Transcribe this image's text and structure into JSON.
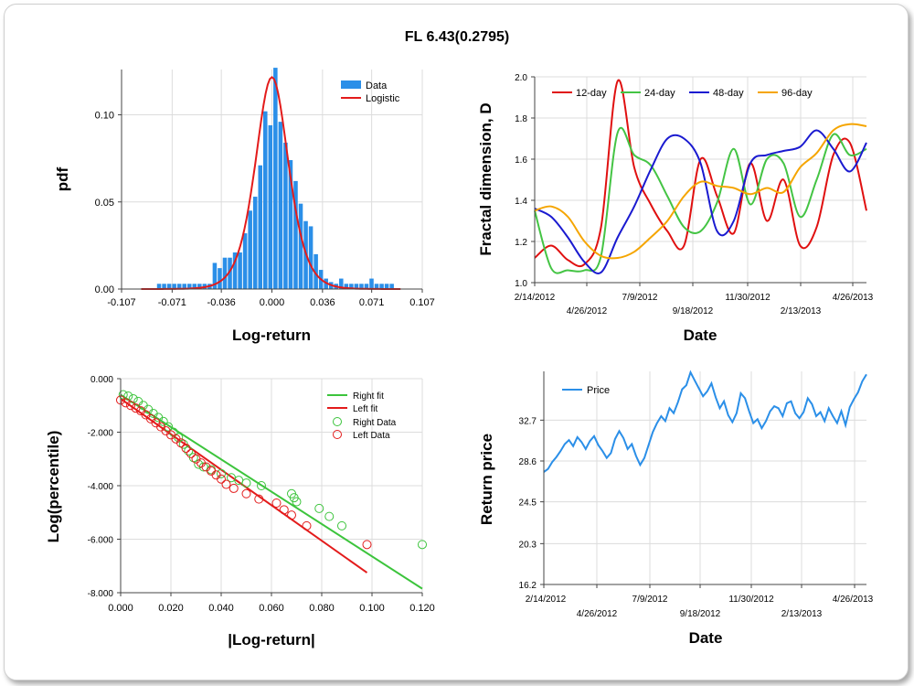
{
  "title": "FL 6.43(0.2795)",
  "colors": {
    "data_blue": "#2b8fe8",
    "fit_red": "#e31b1b",
    "fit_green": "#3cc43c",
    "d12": "#e01010",
    "d24": "#44c444",
    "d48": "#1a1ad0",
    "d96": "#f5a500",
    "price": "#2b8fe8",
    "grid": "#dcdcdc"
  },
  "chart_data": [
    {
      "type": "bar",
      "id": "pdf",
      "xlabel": "Log-return",
      "ylabel": "pdf",
      "xlim": [
        -0.107,
        0.107
      ],
      "ylim": [
        0,
        0.126
      ],
      "xticks": [
        "-0.107",
        "-0.071",
        "-0.036",
        "0.000",
        "0.036",
        "0.071",
        "0.107"
      ],
      "yticks": [
        "0.00",
        "0.05",
        "0.10"
      ],
      "legend": [
        "Data",
        "Logistic"
      ],
      "bins": [
        [
          -0.0803,
          0.003
        ],
        [
          -0.0767,
          0.003
        ],
        [
          -0.0731,
          0.003
        ],
        [
          -0.0695,
          0.003
        ],
        [
          -0.0659,
          0.003
        ],
        [
          -0.0623,
          0.003
        ],
        [
          -0.0587,
          0.003
        ],
        [
          -0.0551,
          0.003
        ],
        [
          -0.0515,
          0.003
        ],
        [
          -0.0479,
          0.003
        ],
        [
          -0.0443,
          0.003
        ],
        [
          -0.0407,
          0.015
        ],
        [
          -0.0371,
          0.012
        ],
        [
          -0.0335,
          0.018
        ],
        [
          -0.0299,
          0.018
        ],
        [
          -0.0263,
          0.021
        ],
        [
          -0.0227,
          0.021
        ],
        [
          -0.0191,
          0.032
        ],
        [
          -0.0155,
          0.045
        ],
        [
          -0.0119,
          0.053
        ],
        [
          -0.0083,
          0.071
        ],
        [
          -0.0047,
          0.102
        ],
        [
          -0.0011,
          0.094
        ],
        [
          0.0025,
          0.127
        ],
        [
          0.0061,
          0.096
        ],
        [
          0.0097,
          0.084
        ],
        [
          0.0133,
          0.074
        ],
        [
          0.0169,
          0.062
        ],
        [
          0.0205,
          0.049
        ],
        [
          0.0241,
          0.039
        ],
        [
          0.0277,
          0.036
        ],
        [
          0.0313,
          0.02
        ],
        [
          0.0349,
          0.011
        ],
        [
          0.0385,
          0.006
        ],
        [
          0.0421,
          0.004
        ],
        [
          0.0457,
          0.003
        ],
        [
          0.0493,
          0.006
        ],
        [
          0.0529,
          0.003
        ],
        [
          0.0565,
          0.003
        ],
        [
          0.0601,
          0.003
        ],
        [
          0.0637,
          0.003
        ],
        [
          0.0673,
          0.003
        ],
        [
          0.0709,
          0.006
        ],
        [
          0.0745,
          0.003
        ],
        [
          0.0781,
          0.003
        ],
        [
          0.0817,
          0.003
        ],
        [
          0.0853,
          0.003
        ]
      ],
      "fit_params": {
        "mu": 0.0,
        "s": 0.00785
      }
    },
    {
      "type": "line",
      "id": "fractal",
      "xlabel": "Date",
      "ylabel": "Fractal dimension, D",
      "ylim": [
        1.0,
        2.0
      ],
      "yticks": [
        "1.0",
        "1.2",
        "1.4",
        "1.6",
        "1.8",
        "2.0"
      ],
      "xticks_top": [
        "2/14/2012",
        "7/9/2012",
        "11/30/2012",
        "4/26/2013"
      ],
      "xticks_bottom": [
        "4/26/2012",
        "9/18/2012",
        "2/13/2013"
      ],
      "legend": [
        "12-day",
        "24-day",
        "48-day",
        "96-day"
      ],
      "x": [
        0,
        5,
        10,
        15,
        20,
        25,
        30,
        35,
        40,
        45,
        50,
        55,
        60,
        65,
        70,
        75,
        80,
        85,
        90,
        95,
        100
      ],
      "series": [
        {
          "name": "12-day",
          "values": [
            1.12,
            1.18,
            1.11,
            1.09,
            1.27,
            1.98,
            1.56,
            1.38,
            1.25,
            1.18,
            1.6,
            1.42,
            1.24,
            1.58,
            1.3,
            1.5,
            1.18,
            1.27,
            1.62,
            1.68,
            1.35
          ]
        },
        {
          "name": "24-day",
          "values": [
            1.35,
            1.07,
            1.06,
            1.06,
            1.13,
            1.73,
            1.62,
            1.57,
            1.42,
            1.27,
            1.25,
            1.39,
            1.65,
            1.38,
            1.6,
            1.58,
            1.32,
            1.5,
            1.72,
            1.62,
            1.65
          ]
        },
        {
          "name": "48-day",
          "values": [
            1.36,
            1.32,
            1.22,
            1.1,
            1.05,
            1.22,
            1.37,
            1.55,
            1.7,
            1.7,
            1.58,
            1.25,
            1.3,
            1.58,
            1.62,
            1.64,
            1.66,
            1.74,
            1.65,
            1.54,
            1.68
          ]
        },
        {
          "name": "96-day",
          "values": [
            1.35,
            1.37,
            1.32,
            1.2,
            1.13,
            1.12,
            1.15,
            1.22,
            1.3,
            1.42,
            1.49,
            1.47,
            1.46,
            1.43,
            1.46,
            1.44,
            1.56,
            1.63,
            1.74,
            1.77,
            1.76
          ]
        }
      ]
    },
    {
      "type": "scatter",
      "id": "tail",
      "xlabel": "|Log-return|",
      "ylabel": "Log(percentile)",
      "xlim": [
        0.0,
        0.12
      ],
      "ylim": [
        -8.0,
        0.0
      ],
      "xticks": [
        "0.000",
        "0.020",
        "0.040",
        "0.060",
        "0.080",
        "0.100",
        "0.120"
      ],
      "yticks": [
        "0.000",
        "-2.000",
        "-4.000",
        "-6.000",
        "-8.000"
      ],
      "legend": [
        "Right fit",
        "Left fit",
        "Right Data",
        "Left Data"
      ],
      "right_fit": [
        [
          0.0,
          -0.6
        ],
        [
          0.12,
          -7.85
        ]
      ],
      "left_fit": [
        [
          0.0,
          -0.75
        ],
        [
          0.098,
          -7.25
        ]
      ],
      "right_data": [
        [
          0.001,
          -0.6
        ],
        [
          0.003,
          -0.65
        ],
        [
          0.005,
          -0.75
        ],
        [
          0.007,
          -0.85
        ],
        [
          0.009,
          -1.0
        ],
        [
          0.011,
          -1.15
        ],
        [
          0.013,
          -1.3
        ],
        [
          0.015,
          -1.45
        ],
        [
          0.017,
          -1.6
        ],
        [
          0.019,
          -1.8
        ],
        [
          0.021,
          -2.0
        ],
        [
          0.023,
          -2.2
        ],
        [
          0.025,
          -2.45
        ],
        [
          0.027,
          -2.7
        ],
        [
          0.029,
          -2.95
        ],
        [
          0.031,
          -3.2
        ],
        [
          0.033,
          -3.3
        ],
        [
          0.036,
          -3.4
        ],
        [
          0.04,
          -3.55
        ],
        [
          0.044,
          -3.7
        ],
        [
          0.047,
          -3.8
        ],
        [
          0.05,
          -3.9
        ],
        [
          0.056,
          -4.0
        ],
        [
          0.068,
          -4.3
        ],
        [
          0.069,
          -4.45
        ],
        [
          0.07,
          -4.6
        ],
        [
          0.079,
          -4.85
        ],
        [
          0.083,
          -5.15
        ],
        [
          0.088,
          -5.5
        ],
        [
          0.12,
          -6.2
        ]
      ],
      "left_data": [
        [
          0.0,
          -0.8
        ],
        [
          0.002,
          -0.9
        ],
        [
          0.004,
          -1.0
        ],
        [
          0.006,
          -1.1
        ],
        [
          0.008,
          -1.2
        ],
        [
          0.01,
          -1.35
        ],
        [
          0.012,
          -1.5
        ],
        [
          0.014,
          -1.65
        ],
        [
          0.016,
          -1.8
        ],
        [
          0.018,
          -1.95
        ],
        [
          0.02,
          -2.1
        ],
        [
          0.022,
          -2.25
        ],
        [
          0.024,
          -2.4
        ],
        [
          0.026,
          -2.6
        ],
        [
          0.028,
          -2.8
        ],
        [
          0.03,
          -3.0
        ],
        [
          0.032,
          -3.15
        ],
        [
          0.034,
          -3.3
        ],
        [
          0.036,
          -3.45
        ],
        [
          0.038,
          -3.6
        ],
        [
          0.04,
          -3.75
        ],
        [
          0.042,
          -3.95
        ],
        [
          0.045,
          -4.1
        ],
        [
          0.05,
          -4.3
        ],
        [
          0.055,
          -4.5
        ],
        [
          0.062,
          -4.65
        ],
        [
          0.065,
          -4.9
        ],
        [
          0.068,
          -5.1
        ],
        [
          0.074,
          -5.5
        ],
        [
          0.098,
          -6.2
        ]
      ]
    },
    {
      "type": "line",
      "id": "price",
      "xlabel": "Date",
      "ylabel": "Return price",
      "ylim": [
        16.2,
        37.6
      ],
      "yticks": [
        "16.2",
        "20.3",
        "24.5",
        "28.6",
        "32.7"
      ],
      "xticks_top": [
        "2/14/2012",
        "7/9/2012",
        "11/30/2012",
        "4/26/2013"
      ],
      "xticks_bottom": [
        "4/26/2012",
        "9/18/2012",
        "2/13/2013"
      ],
      "legend": [
        "Price"
      ],
      "series": [
        {
          "name": "Price",
          "values": [
            27.5,
            27.8,
            28.5,
            29.0,
            29.6,
            30.3,
            30.7,
            30.1,
            31.0,
            30.5,
            29.8,
            30.6,
            31.1,
            30.2,
            29.6,
            28.9,
            29.4,
            30.8,
            31.6,
            30.9,
            29.8,
            30.3,
            29.1,
            28.2,
            28.9,
            30.2,
            31.5,
            32.4,
            33.1,
            32.6,
            33.9,
            33.4,
            34.5,
            35.8,
            36.2,
            37.5,
            36.7,
            35.9,
            35.1,
            35.6,
            36.4,
            35.0,
            33.9,
            34.6,
            33.2,
            32.5,
            33.4,
            35.4,
            34.9,
            33.6,
            32.4,
            32.8,
            31.9,
            32.6,
            33.6,
            34.1,
            33.9,
            33.1,
            34.4,
            34.6,
            33.4,
            32.9,
            33.5,
            34.9,
            34.3,
            33.1,
            33.5,
            32.6,
            33.9,
            33.1,
            32.4,
            33.6,
            32.2,
            34.0,
            34.8,
            35.5,
            36.6,
            37.3
          ]
        }
      ]
    }
  ]
}
